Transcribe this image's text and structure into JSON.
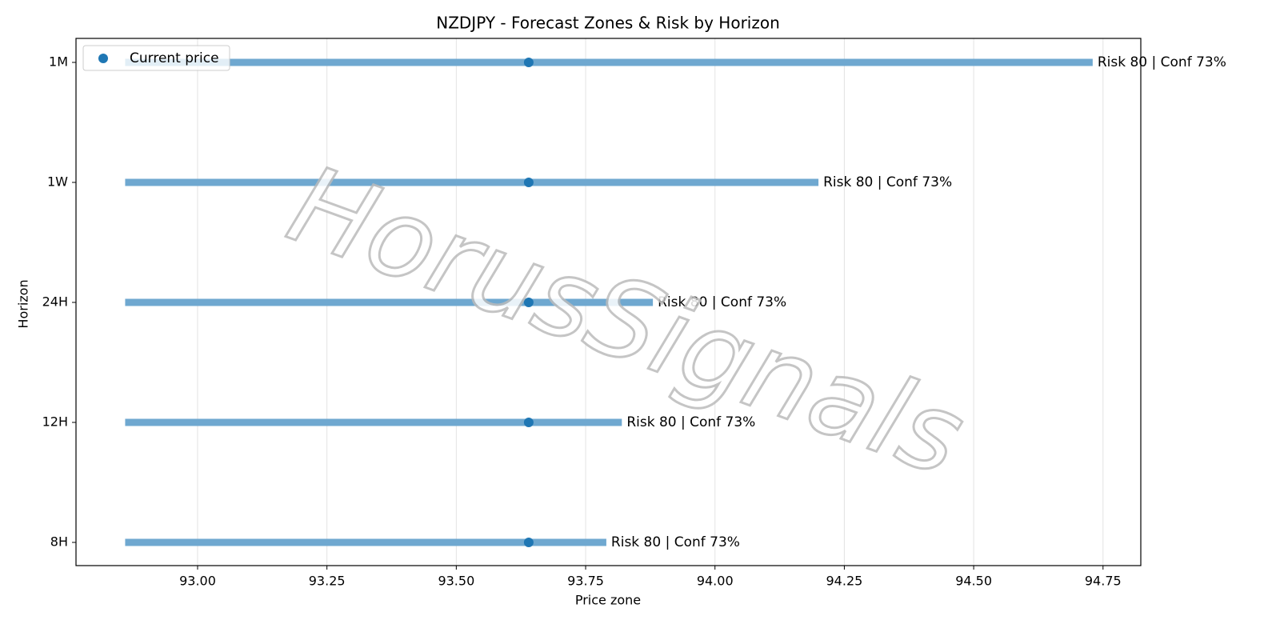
{
  "chart_data": {
    "type": "range",
    "title": "NZDJPY - Forecast Zones & Risk by Horizon",
    "xlabel": "Price zone",
    "ylabel": "Horizon",
    "categories": [
      "1M",
      "1W",
      "24H",
      "12H",
      "8H"
    ],
    "low": [
      92.86,
      92.86,
      92.86,
      92.86,
      92.86
    ],
    "high": [
      94.73,
      94.2,
      93.88,
      93.82,
      93.79
    ],
    "color": "#6fa8d0",
    "current": {
      "name": "Current price",
      "color": "#1f77b4",
      "values": [
        93.64,
        93.64,
        93.64,
        93.64,
        93.64
      ]
    },
    "annotations": [
      "Risk 80 | Conf 73%",
      "Risk 80 | Conf 73%",
      "Risk 80 | Conf 73%",
      "Risk 80 | Conf 73%",
      "Risk 80 | Conf 73%"
    ],
    "xlim": [
      92.765,
      94.823
    ],
    "xticks": [
      {
        "value": 93,
        "label": "93.00"
      },
      {
        "value": 93.25,
        "label": "93.25"
      },
      {
        "value": 93.5,
        "label": "93.50"
      },
      {
        "value": 93.75,
        "label": "93.75"
      },
      {
        "value": 94,
        "label": "94.00"
      },
      {
        "value": 94.25,
        "label": "94.25"
      },
      {
        "value": 94.5,
        "label": "94.50"
      },
      {
        "value": 94.75,
        "label": "94.75"
      }
    ],
    "grid": true,
    "legend": "upper left",
    "watermark": "HorusSignals"
  }
}
